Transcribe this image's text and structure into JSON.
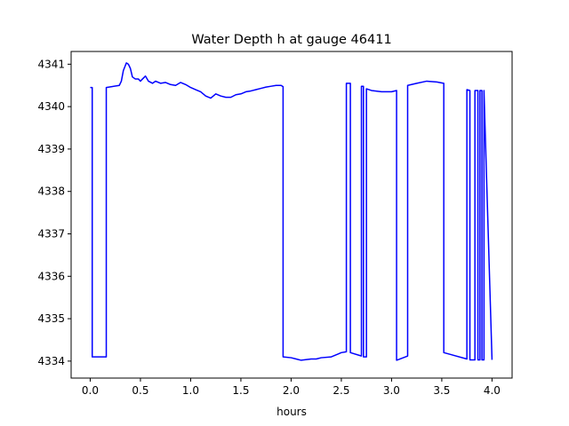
{
  "chart_data": {
    "type": "line",
    "title": "Water Depth h at gauge 46411",
    "xlabel": "hours",
    "ylabel": "",
    "xlim": [
      -0.19,
      4.2
    ],
    "ylim": [
      4333.6,
      4341.3
    ],
    "xticks": [
      0.0,
      0.5,
      1.0,
      1.5,
      2.0,
      2.5,
      3.0,
      3.5,
      4.0
    ],
    "xtick_labels": [
      "0.0",
      "0.5",
      "1.0",
      "1.5",
      "2.0",
      "2.5",
      "3.0",
      "3.5",
      "4.0"
    ],
    "yticks": [
      4334,
      4335,
      4336,
      4337,
      4338,
      4339,
      4340,
      4341
    ],
    "ytick_labels": [
      "4334",
      "4335",
      "4336",
      "4337",
      "4338",
      "4339",
      "4340",
      "4341"
    ],
    "grid": false,
    "colors": {
      "line": "#0000ff"
    },
    "series": [
      {
        "x": [
          0.0,
          0.02,
          0.02,
          0.16,
          0.16,
          0.29,
          0.31,
          0.33,
          0.36,
          0.38,
          0.4,
          0.42,
          0.45,
          0.48,
          0.5,
          0.52,
          0.55,
          0.58,
          0.62,
          0.65,
          0.7,
          0.75,
          0.8,
          0.85,
          0.9,
          0.95,
          1.0,
          1.05,
          1.1,
          1.15,
          1.2,
          1.25,
          1.3,
          1.35,
          1.4,
          1.45,
          1.5,
          1.55,
          1.6,
          1.65,
          1.7,
          1.75,
          1.8,
          1.85,
          1.9,
          1.92,
          1.92,
          2.0,
          2.05,
          2.1,
          2.2,
          2.25,
          2.3,
          2.4,
          2.5,
          2.55,
          2.55,
          2.59,
          2.59,
          2.7,
          2.7,
          2.72,
          2.72,
          2.75,
          2.75,
          2.8,
          2.9,
          3.0,
          3.05,
          3.05,
          3.16,
          3.16,
          3.25,
          3.35,
          3.45,
          3.52,
          3.52,
          3.75,
          3.75,
          3.78,
          3.78,
          3.83,
          3.83,
          3.86,
          3.86,
          3.88,
          3.88,
          3.9,
          3.9,
          3.92,
          3.92,
          4.0
        ],
        "y": [
          4340.45,
          4340.45,
          4334.1,
          4334.1,
          4340.45,
          4340.5,
          4340.6,
          4340.85,
          4341.03,
          4341.0,
          4340.9,
          4340.7,
          4340.65,
          4340.65,
          4340.6,
          4340.65,
          4340.72,
          4340.6,
          4340.55,
          4340.6,
          4340.55,
          4340.57,
          4340.52,
          4340.5,
          4340.57,
          4340.52,
          4340.45,
          4340.4,
          4340.35,
          4340.25,
          4340.2,
          4340.3,
          4340.25,
          4340.22,
          4340.22,
          4340.28,
          4340.3,
          4340.35,
          4340.37,
          4340.4,
          4340.43,
          4340.46,
          4340.48,
          4340.5,
          4340.5,
          4340.47,
          4334.1,
          4334.08,
          4334.05,
          4334.02,
          4334.05,
          4334.05,
          4334.08,
          4334.1,
          4334.2,
          4334.22,
          4340.55,
          4340.55,
          4334.2,
          4334.12,
          4340.48,
          4340.48,
          4334.1,
          4334.1,
          4340.42,
          4340.38,
          4340.35,
          4340.35,
          4340.38,
          4334.02,
          4334.12,
          4340.5,
          4340.55,
          4340.6,
          4340.58,
          4340.55,
          4334.2,
          4334.05,
          4340.4,
          4340.38,
          4334.03,
          4334.03,
          4340.38,
          4340.38,
          4334.03,
          4334.03,
          4340.38,
          4340.38,
          4334.03,
          4334.03,
          4340.38,
          4334.03
        ]
      }
    ]
  }
}
